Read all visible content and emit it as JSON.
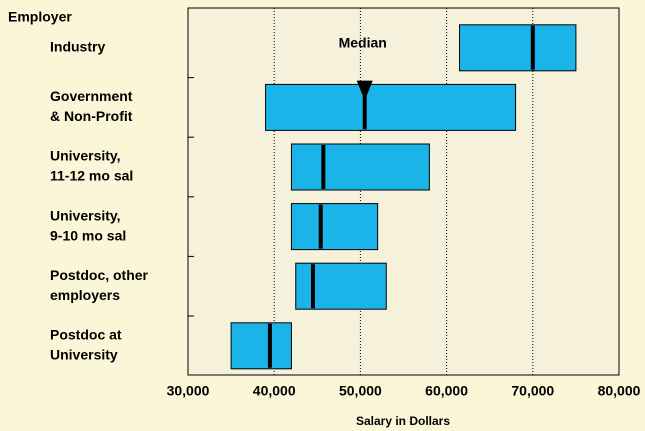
{
  "chart_data": {
    "type": "range-bar",
    "y_axis_label": "Employer",
    "x_axis_label": "Salary in Dollars",
    "annotation": "Median",
    "categories": [
      [
        "Industry"
      ],
      [
        "Government",
        "& Non-Profit"
      ],
      [
        "University,",
        "11-12 mo sal"
      ],
      [
        "University,",
        "9-10 mo sal"
      ],
      [
        "Postdoc, other",
        "employers"
      ],
      [
        "Postdoc at",
        "University"
      ]
    ],
    "low": [
      61500,
      39000,
      42000,
      42000,
      42500,
      35000
    ],
    "high": [
      75000,
      68000,
      58000,
      52000,
      53000,
      42000
    ],
    "median": [
      70000,
      50500,
      45700,
      45400,
      44500,
      39500
    ],
    "color": "#1ab4e8",
    "xlim": [
      30000,
      80000
    ],
    "xticks": [
      {
        "value": 30000,
        "label": "30,000"
      },
      {
        "value": 40000,
        "label": "40,000"
      },
      {
        "value": 50000,
        "label": "50,000"
      },
      {
        "value": 60000,
        "label": "60,000"
      },
      {
        "value": 70000,
        "label": "70,000"
      },
      {
        "value": 80000,
        "label": "80,000"
      }
    ],
    "grid": true
  }
}
